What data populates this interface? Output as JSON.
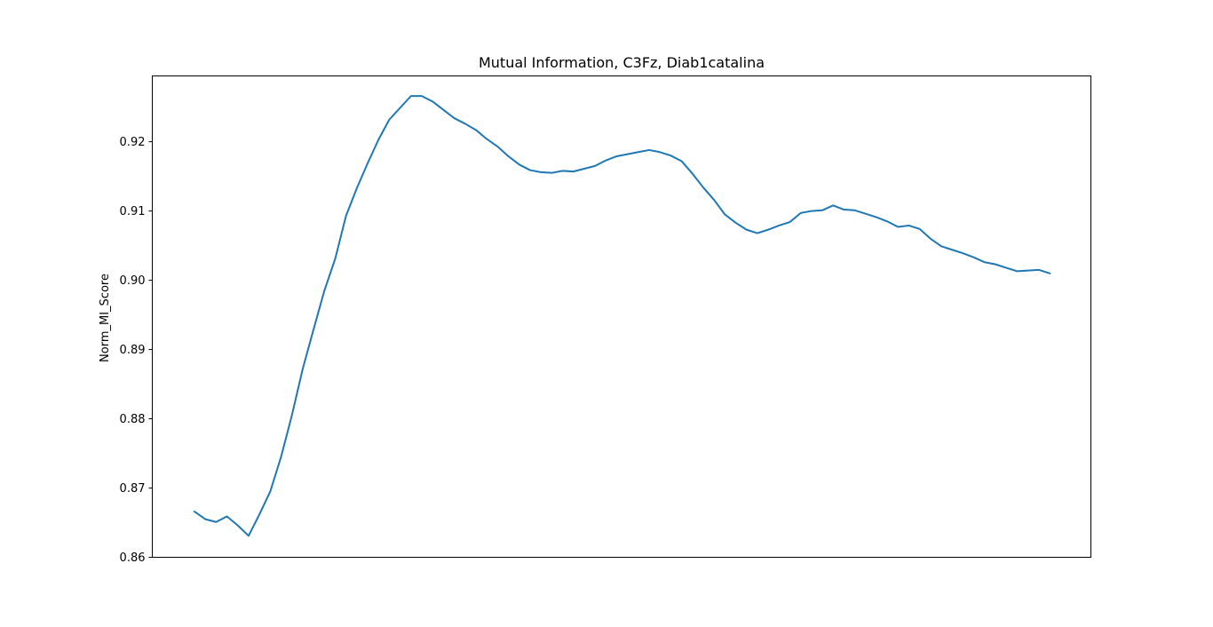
{
  "chart_data": {
    "type": "line",
    "title": "Mutual Information, C3Fz, Diab1catalina",
    "xlabel": "",
    "ylabel": "Norm_MI_Score",
    "ylim": [
      0.86,
      0.9295
    ],
    "yticks": [
      "0.86",
      "0.87",
      "0.88",
      "0.89",
      "0.90",
      "0.91",
      "0.92"
    ],
    "xticks_visible": false,
    "grid": false,
    "legend": "none",
    "line_color": "#1f77b4",
    "series": [
      {
        "values": [
          0.8666,
          0.8655,
          0.8651,
          0.8659,
          0.8646,
          0.8631,
          0.8662,
          0.8695,
          0.8745,
          0.8805,
          0.8872,
          0.8929,
          0.8985,
          0.9031,
          0.9093,
          0.9133,
          0.9169,
          0.9203,
          0.9232,
          0.9249,
          0.9266,
          0.9266,
          0.9258,
          0.9246,
          0.9234,
          0.9226,
          0.9217,
          0.9204,
          0.9193,
          0.9179,
          0.9167,
          0.9159,
          0.9156,
          0.9155,
          0.9158,
          0.9157,
          0.9161,
          0.9165,
          0.9173,
          0.9179,
          0.9182,
          0.9185,
          0.9188,
          0.9185,
          0.918,
          0.9172,
          0.9154,
          0.9134,
          0.9116,
          0.9095,
          0.9083,
          0.9073,
          0.9068,
          0.9073,
          0.9079,
          0.9084,
          0.9097,
          0.91,
          0.9101,
          0.9108,
          0.9102,
          0.9101,
          0.9096,
          0.9091,
          0.9085,
          0.9077,
          0.9079,
          0.9074,
          0.906,
          0.9049,
          0.9044,
          0.9039,
          0.9033,
          0.9026,
          0.9023,
          0.9018,
          0.9013,
          0.9014,
          0.9015,
          0.901
        ]
      }
    ]
  }
}
